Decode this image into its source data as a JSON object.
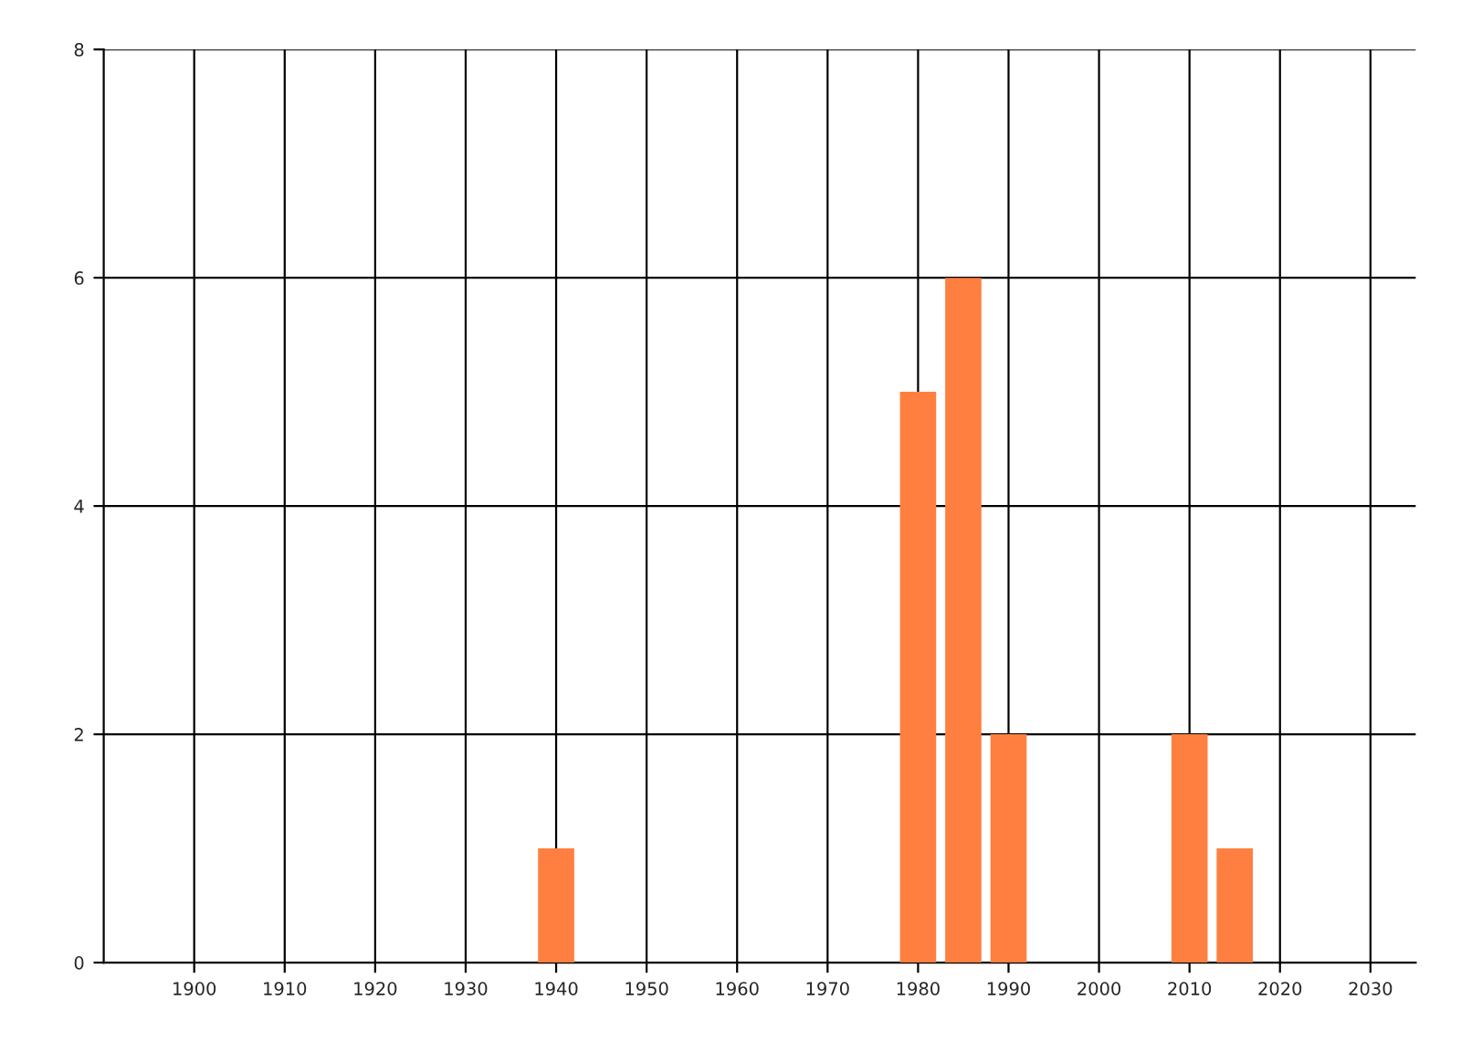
{
  "chart_data": {
    "type": "bar",
    "x": [
      1940,
      1980,
      1985,
      1990,
      2010,
      2015
    ],
    "values": [
      1,
      5,
      6,
      2,
      2,
      1
    ],
    "color": "#ff7f40",
    "xlim": [
      1890,
      2035
    ],
    "xticks": [
      1900,
      1910,
      1920,
      1930,
      1940,
      1950,
      1960,
      1970,
      1980,
      1990,
      2000,
      2010,
      2020,
      2030
    ],
    "ylim": [
      0,
      8
    ],
    "yticks": [
      0,
      2,
      4,
      6,
      8
    ],
    "grid": true
  }
}
